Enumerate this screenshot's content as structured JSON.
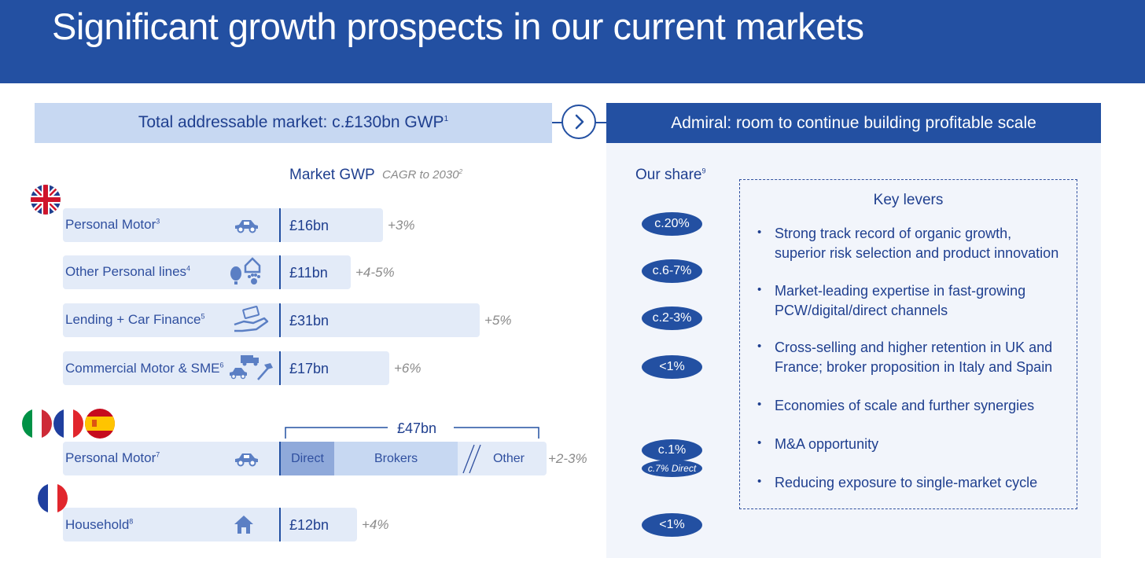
{
  "title": "Significant growth prospects in our current markets",
  "left_band": {
    "text": "Total addressable market: c.£130bn GWP",
    "sup": "1"
  },
  "right_band": {
    "text": "Admiral: room to continue building profitable scale"
  },
  "headers": {
    "market_gwp": "Market GWP",
    "cagr": "CAGR to 2030",
    "cagr_sup": "2",
    "our_share": "Our share",
    "our_share_sup": "9"
  },
  "colors": {
    "brand_dark": "#2350a2",
    "band_light": "#c7d8f2",
    "bar_light": "#e3ebf8",
    "direct": "#8fa9da",
    "brokers": "#c7d8f2"
  },
  "chart_data": {
    "type": "bar",
    "unit": "£bn",
    "title": "Market GWP",
    "uk_rows": [
      {
        "label": "Personal Motor",
        "sup": "3",
        "icon": "car-icon",
        "value": 16,
        "value_label": "£16bn",
        "cagr": "+3%",
        "share": "c.20%"
      },
      {
        "label": "Other Personal lines",
        "sup": "4",
        "icon": "balloon-house-paw-icon",
        "value": 11,
        "value_label": "£11bn",
        "cagr": "+4-5%",
        "share": "c.6-7%"
      },
      {
        "label": "Lending + Car Finance",
        "sup": "5",
        "icon": "hand-money-icon",
        "value": 31,
        "value_label": "£31bn",
        "cagr": "+5%",
        "share": "c.2-3%"
      },
      {
        "label": "Commercial Motor & SME",
        "sup": "6",
        "icon": "truck-hammer-icon",
        "value": 17,
        "value_label": "£17bn",
        "cagr": "+6%",
        "share": "<1%"
      }
    ],
    "eu_motor": {
      "label": "Personal Motor",
      "sup": "7",
      "icon": "car-icon",
      "total": 47,
      "total_label": "£47bn",
      "segments": [
        {
          "name": "Direct"
        },
        {
          "name": "Brokers"
        },
        {
          "name": "Other"
        }
      ],
      "cagr": "+2-3%",
      "share": "c.1%",
      "share_sub": "c.7% Direct"
    },
    "fr_household": {
      "label": "Household",
      "sup": "8",
      "icon": "house-icon",
      "value": 12,
      "value_label": "£12bn",
      "cagr": "+4%",
      "share": "<1%"
    }
  },
  "key_levers": {
    "title": "Key levers",
    "items": [
      {
        "line1": "Strong track record of organic growth,",
        "line2": "superior risk selection and product innovation"
      },
      {
        "line1": "Market-leading expertise in fast-growing",
        "line2": "PCW/digital/direct channels"
      },
      {
        "line1": "Cross-selling and higher retention in UK and",
        "line2": "France; broker proposition in Italy and Spain"
      },
      {
        "line1": "Economies of scale and further synergies",
        "line2": ""
      },
      {
        "line1": "M&A opportunity",
        "line2": ""
      },
      {
        "line1": "Reducing exposure to single-market cycle",
        "line2": ""
      }
    ]
  }
}
